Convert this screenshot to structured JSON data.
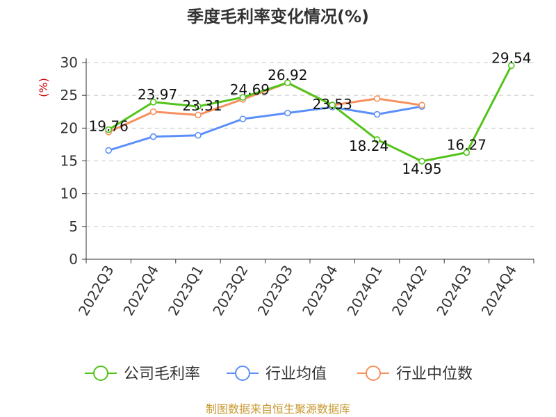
{
  "chart_data": {
    "type": "line",
    "title": "季度毛利率变化情况(%)",
    "ylabel": "(%)",
    "xlabel": "",
    "ylim": [
      0,
      30
    ],
    "yticks": [
      0,
      5,
      10,
      15,
      20,
      25,
      30
    ],
    "grid": true,
    "legend_position": "bottom",
    "categories": [
      "2022Q3",
      "2022Q4",
      "2023Q1",
      "2023Q2",
      "2023Q3",
      "2023Q4",
      "2024Q1",
      "2024Q2",
      "2024Q3",
      "2024Q4"
    ],
    "series": [
      {
        "name": "公司毛利率",
        "color": "#52c41a",
        "values": [
          19.76,
          23.97,
          23.31,
          24.69,
          26.92,
          23.53,
          18.24,
          14.95,
          16.27,
          29.54
        ],
        "labels": true
      },
      {
        "name": "行业均值",
        "color": "#5b8ff9",
        "values": [
          16.6,
          18.7,
          18.9,
          21.4,
          22.3,
          23.2,
          22.1,
          23.3,
          null,
          null
        ],
        "labels": false
      },
      {
        "name": "行业中位数",
        "color": "#f6905e",
        "values": [
          19.4,
          22.5,
          22.0,
          24.4,
          26.9,
          23.5,
          24.5,
          23.5,
          null,
          null
        ],
        "labels": false
      }
    ]
  },
  "source": "制图数据来自恒生聚源数据库"
}
